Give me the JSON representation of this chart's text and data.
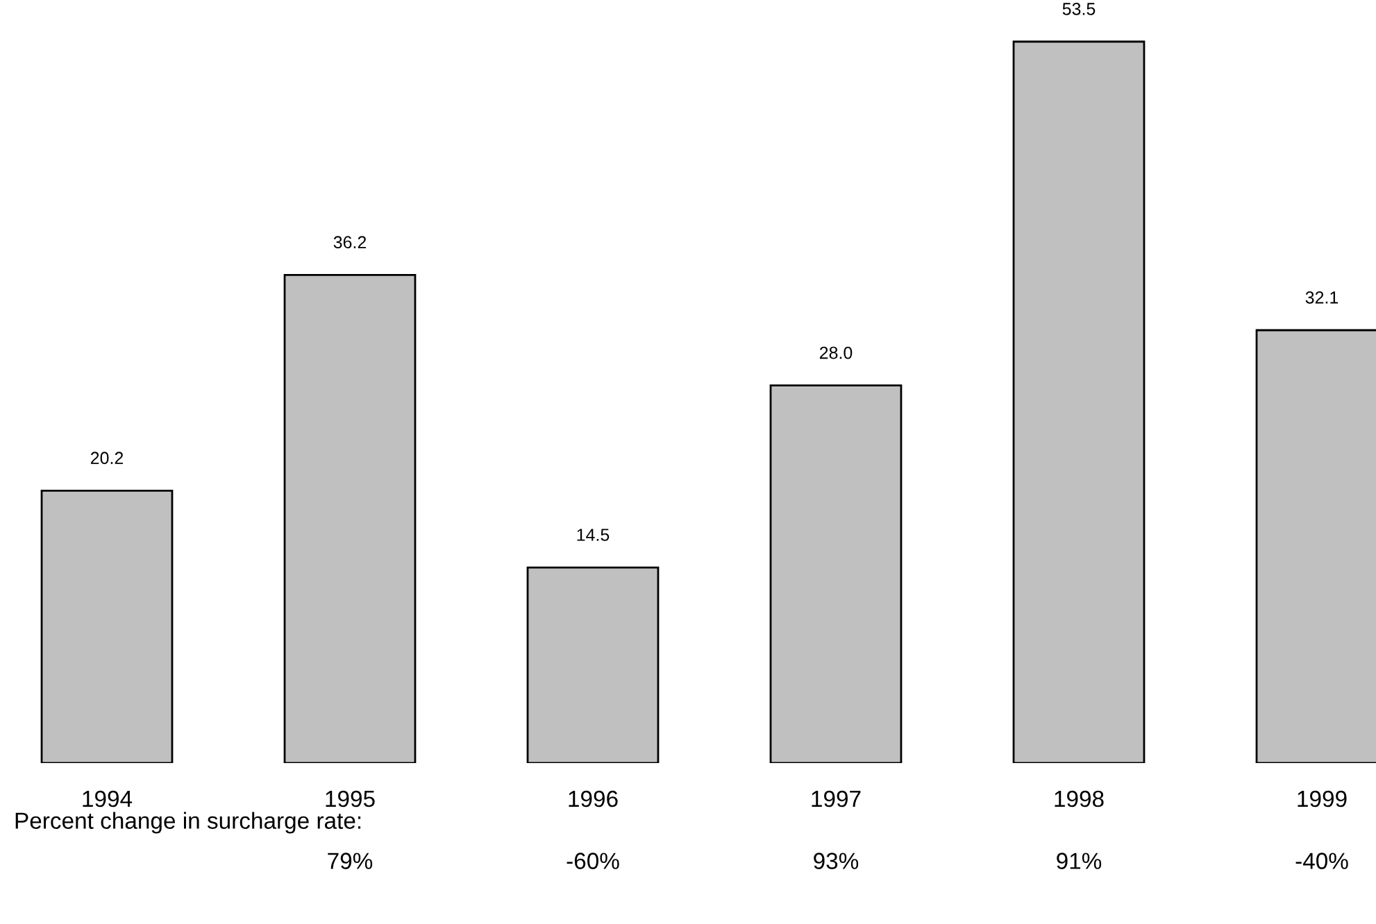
{
  "chart_data": {
    "type": "bar",
    "categories": [
      "1994",
      "1995",
      "1996",
      "1997",
      "1998",
      "1999"
    ],
    "values": [
      20.2,
      36.2,
      14.5,
      28.0,
      53.5,
      32.1
    ],
    "value_labels": [
      "20.2",
      "36.2",
      "14.5",
      "28.0",
      "53.5",
      "32.1"
    ],
    "color": "#c0c0c0",
    "grid": false,
    "legend": false,
    "annotations": [
      "Percent change in surcharge rate:",
      "79%",
      "-60%",
      "93%",
      "91%",
      "-40%"
    ]
  }
}
